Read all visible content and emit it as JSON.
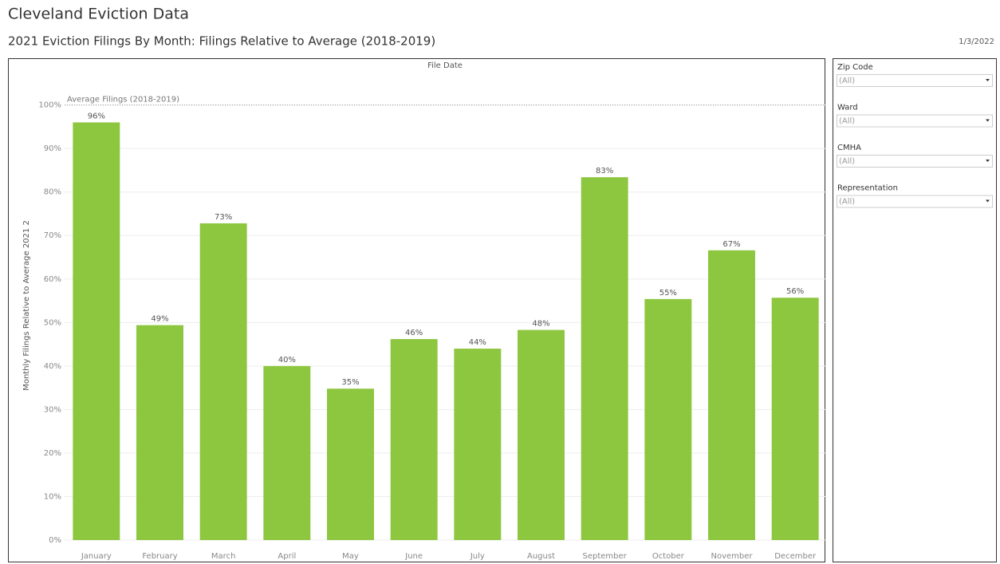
{
  "header": {
    "title": "Cleveland Eviction Data",
    "date": "1/3/2022"
  },
  "chart_data": {
    "type": "bar",
    "title": "2021 Eviction Filings By Month: Filings Relative to Average (2018-2019)",
    "x_label": "File Date",
    "y_label": "Monthly Filings Relative to Average 2021 2",
    "categories": [
      "January",
      "February",
      "March",
      "April",
      "May",
      "June",
      "July",
      "August",
      "September",
      "October",
      "November",
      "December"
    ],
    "values": [
      96.0,
      49.4,
      72.8,
      40.0,
      34.8,
      46.2,
      44.0,
      48.3,
      83.4,
      55.4,
      66.6,
      55.7
    ],
    "value_labels": [
      "96%",
      "49%",
      "73%",
      "40%",
      "35%",
      "46%",
      "44%",
      "48%",
      "83%",
      "55%",
      "67%",
      "56%"
    ],
    "color": "#8dc63f",
    "ylim": [
      0,
      108
    ],
    "yticks": [
      {
        "value": 0,
        "label": "0%"
      },
      {
        "value": 10,
        "label": "10%"
      },
      {
        "value": 20,
        "label": "20%"
      },
      {
        "value": 30,
        "label": "30%"
      },
      {
        "value": 40,
        "label": "40%"
      },
      {
        "value": 50,
        "label": "50%"
      },
      {
        "value": 60,
        "label": "60%"
      },
      {
        "value": 70,
        "label": "70%"
      },
      {
        "value": 80,
        "label": "80%"
      },
      {
        "value": 90,
        "label": "90%"
      },
      {
        "value": 100,
        "label": "100%"
      }
    ],
    "grid": true,
    "reference_line": {
      "value": 100,
      "label": "Average Filings (2018-2019)"
    }
  },
  "filters": [
    {
      "label": "Zip Code",
      "value": "(All)"
    },
    {
      "label": "Ward",
      "value": "(All)"
    },
    {
      "label": "CMHA",
      "value": "(All)"
    },
    {
      "label": "Representation",
      "value": "(All)"
    }
  ]
}
